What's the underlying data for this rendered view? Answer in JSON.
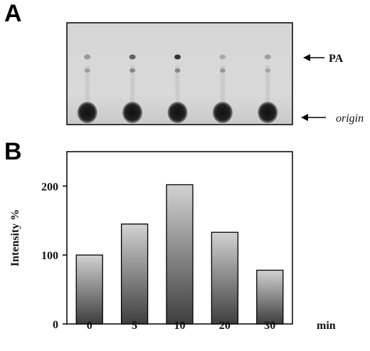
{
  "panels": {
    "a_label": "A",
    "b_label": "B"
  },
  "tlc": {
    "lanes": 5,
    "pa_label": "PA",
    "origin_label": "origin",
    "colors": {
      "background": "#d9d9d9",
      "spot": "#1a1a1a"
    }
  },
  "chart_data": {
    "type": "bar",
    "categories": [
      "0",
      "5",
      "10",
      "20",
      "30"
    ],
    "values": [
      100,
      145,
      202,
      133,
      78
    ],
    "title": "",
    "xlabel": "min",
    "ylabel": "Intensity %",
    "ylim": [
      0,
      250
    ],
    "yticks": [
      0,
      100,
      200
    ],
    "grid": false,
    "legend": "none",
    "colors": {
      "bar_top": "#d2d2d2",
      "bar_bottom": "#3e3e3e"
    }
  }
}
